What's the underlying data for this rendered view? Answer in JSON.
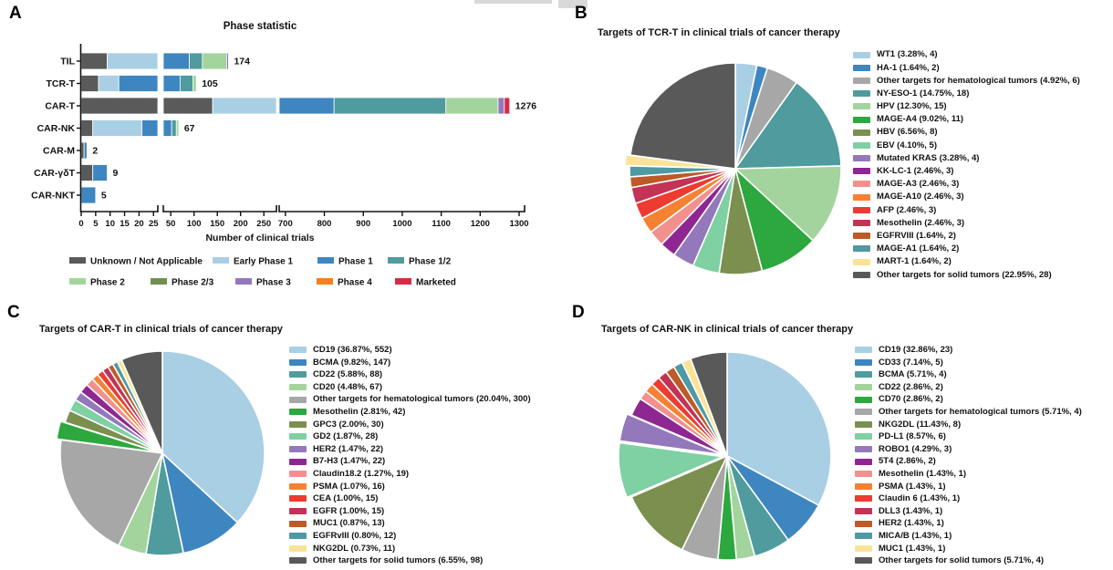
{
  "panels": {
    "a": "A",
    "b": "B",
    "c": "C",
    "d": "D"
  },
  "chart_data": [
    {
      "id": "A",
      "type": "bar",
      "orientation": "horizontal-stacked",
      "title": "Phase statistic",
      "xlabel": "Number of clinical trials",
      "categories": [
        "TIL",
        "TCR-T",
        "CAR-T",
        "CAR-NK",
        "CAR-M",
        "CAR-γδT",
        "CAR-NKT"
      ],
      "totals": [
        174,
        105,
        1276,
        67,
        2,
        9,
        5
      ],
      "series": [
        {
          "name": "Unknown / Not Applicable",
          "color": "#5a5a5a",
          "values": [
            9,
            6,
            140,
            4,
            1,
            4,
            0
          ]
        },
        {
          "name": "Early Phase 1",
          "color": "#a9cfe4",
          "values": [
            21,
            7,
            400,
            17,
            0,
            0,
            0
          ]
        },
        {
          "name": "Phase 1",
          "color": "#3e86c0",
          "values": [
            60,
            57,
            285,
            31,
            1,
            5,
            5
          ]
        },
        {
          "name": "Phase 1/2",
          "color": "#4f9b9e",
          "values": [
            28,
            28,
            287,
            10,
            0,
            0,
            0
          ]
        },
        {
          "name": "Phase 2",
          "color": "#a3d49d",
          "values": [
            52,
            7,
            134,
            5,
            0,
            0,
            0
          ]
        },
        {
          "name": "Phase 2/3",
          "color": "#6f8f4f",
          "values": [
            0,
            0,
            0,
            0,
            0,
            0,
            0
          ]
        },
        {
          "name": "Phase 3",
          "color": "#9478bd",
          "values": [
            4,
            0,
            16,
            0,
            0,
            0,
            0
          ]
        },
        {
          "name": "Phase 4",
          "color": "#f58020",
          "values": [
            0,
            0,
            0,
            0,
            0,
            0,
            0
          ]
        },
        {
          "name": "Marketed",
          "color": "#d62b47",
          "values": [
            0,
            0,
            14,
            0,
            0,
            0,
            0
          ]
        }
      ],
      "axis_segments_values": [
        [
          0,
          26.5
        ],
        [
          34,
          277
        ],
        [
          684,
          1314
        ]
      ],
      "axis_ticks": [
        [
          0,
          5,
          10,
          15,
          20,
          25
        ],
        [
          50,
          100,
          150,
          200,
          250
        ],
        [
          700,
          800,
          900,
          1000,
          1100,
          1200,
          1300
        ]
      ],
      "legend_rows": [
        [
          "Unknown / Not Applicable",
          "Early Phase 1",
          "Phase 1",
          "Phase 1/2"
        ],
        [
          "Phase 2",
          "Phase 2/3",
          "Phase 3",
          "Phase 4",
          "Marketed"
        ]
      ]
    },
    {
      "id": "B",
      "type": "pie",
      "title": "Targets of TCR-T in clinical trials of cancer therapy",
      "slices": [
        {
          "label": "WT1 (3.28%, 4)",
          "value": 3.28,
          "count": 4,
          "color": "#a9cfe4",
          "explode": 0
        },
        {
          "label": "HA-1 (1.64%, 2)",
          "value": 1.64,
          "count": 2,
          "color": "#3e86c0",
          "explode": 0
        },
        {
          "label": "Other targets for hematological tumors (4.92%, 6)",
          "value": 4.92,
          "count": 6,
          "color": "#a7a7a7",
          "explode": 0
        },
        {
          "label": "NY-ESO-1 (14.75%, 18)",
          "value": 14.75,
          "count": 18,
          "color": "#4f9b9e",
          "explode": 0
        },
        {
          "label": "HPV (12.30%, 15)",
          "value": 12.3,
          "count": 15,
          "color": "#a3d49d",
          "explode": 0
        },
        {
          "label": "MAGE-A4 (9.02%, 11)",
          "value": 9.02,
          "count": 11,
          "color": "#2ca83e",
          "explode": 0
        },
        {
          "label": "HBV (6.56%, 8)",
          "value": 6.56,
          "count": 8,
          "color": "#7b8f4e",
          "explode": 0
        },
        {
          "label": "EBV (4.10%, 5)",
          "value": 4.1,
          "count": 5,
          "color": "#7fd0a2",
          "explode": 0
        },
        {
          "label": "Mutated KRAS (3.28%, 4)",
          "value": 3.28,
          "count": 4,
          "color": "#9378bc",
          "explode": 0
        },
        {
          "label": "KK-LC-1 (2.46%, 3)",
          "value": 2.46,
          "count": 3,
          "color": "#8e2791",
          "explode": 0
        },
        {
          "label": "MAGE-A3 (2.46%, 3)",
          "value": 2.46,
          "count": 3,
          "color": "#f2908d",
          "explode": 0
        },
        {
          "label": "MAGE-A10 (2.46%, 3)",
          "value": 2.46,
          "count": 3,
          "color": "#f58233",
          "explode": 0
        },
        {
          "label": "AFP (2.46%, 3)",
          "value": 2.46,
          "count": 3,
          "color": "#ed3b31",
          "explode": 0
        },
        {
          "label": "Mesothelin (2.46%, 3)",
          "value": 2.46,
          "count": 3,
          "color": "#c23355",
          "explode": 0
        },
        {
          "label": "EGFRVIII (1.64%, 2)",
          "value": 1.64,
          "count": 2,
          "color": "#bd5a27",
          "explode": 0
        },
        {
          "label": "MAGE-A1 (1.64%, 2)",
          "value": 1.64,
          "count": 2,
          "color": "#4d99a4",
          "explode": 0
        },
        {
          "label": "MART-1 (1.64%, 2)",
          "value": 1.64,
          "count": 2,
          "color": "#fae398",
          "explode": 1
        },
        {
          "label": "Other targets for solid tumors (22.95%, 28)",
          "value": 22.95,
          "count": 28,
          "color": "#595959",
          "explode": 0
        }
      ]
    },
    {
      "id": "C",
      "type": "pie",
      "title": "Targets of CAR-T in clinical trials of cancer therapy",
      "slices": [
        {
          "label": "CD19 (36.87%, 552)",
          "value": 36.87,
          "count": 552,
          "color": "#a9cfe4",
          "explode": 0
        },
        {
          "label": "BCMA (9.82%, 147)",
          "value": 9.82,
          "count": 147,
          "color": "#3e86c0",
          "explode": 0
        },
        {
          "label": "CD22 (5.88%, 88)",
          "value": 5.88,
          "count": 88,
          "color": "#4f9b9e",
          "explode": 0
        },
        {
          "label": "CD20 (4.48%, 67)",
          "value": 4.48,
          "count": 67,
          "color": "#a3d49d",
          "explode": 0
        },
        {
          "label": "Other targets for hematological tumors (20.04%, 300)",
          "value": 20.04,
          "count": 300,
          "color": "#a7a7a7",
          "explode": 0
        },
        {
          "label": "Mesothelin (2.81%, 42)",
          "value": 2.81,
          "count": 42,
          "color": "#2ca83e",
          "explode": 1
        },
        {
          "label": "GPC3 (2.00%, 30)",
          "value": 2.0,
          "count": 30,
          "color": "#7b8f4e",
          "explode": 0
        },
        {
          "label": "GD2 (1.87%, 28)",
          "value": 1.87,
          "count": 28,
          "color": "#7fd0a2",
          "explode": 0
        },
        {
          "label": "HER2 (1.47%, 22)",
          "value": 1.47,
          "count": 22,
          "color": "#9378bc",
          "explode": 0
        },
        {
          "label": "B7-H3 (1.47%, 22)",
          "value": 1.47,
          "count": 22,
          "color": "#8e2791",
          "explode": 0
        },
        {
          "label": "Claudin18.2 (1.27%, 19)",
          "value": 1.27,
          "count": 19,
          "color": "#f2908d",
          "explode": 0
        },
        {
          "label": "PSMA (1.07%, 16)",
          "value": 1.07,
          "count": 16,
          "color": "#f58233",
          "explode": 0
        },
        {
          "label": "CEA (1.00%, 15)",
          "value": 1.0,
          "count": 15,
          "color": "#ed3b31",
          "explode": 0
        },
        {
          "label": "EGFR (1.00%, 15)",
          "value": 1.0,
          "count": 15,
          "color": "#c23355",
          "explode": 0
        },
        {
          "label": "MUC1 (0.87%, 13)",
          "value": 0.87,
          "count": 13,
          "color": "#bd5a27",
          "explode": 0
        },
        {
          "label": "EGFRvIII (0.80%, 12)",
          "value": 0.8,
          "count": 12,
          "color": "#4d99a4",
          "explode": 0
        },
        {
          "label": "NKG2DL (0.73%, 11)",
          "value": 0.73,
          "count": 11,
          "color": "#fae398",
          "explode": 0
        },
        {
          "label": "Other targets for solid tumors (6.55%, 98)",
          "value": 6.55,
          "count": 98,
          "color": "#595959",
          "explode": 0
        }
      ]
    },
    {
      "id": "D",
      "type": "pie",
      "title": "Targets of CAR-NK in clinical trials of cancer therapy",
      "slices": [
        {
          "label": "CD19 (32.86%, 23)",
          "value": 32.86,
          "count": 23,
          "color": "#a9cfe4",
          "explode": 0
        },
        {
          "label": "CD33 (7.14%, 5)",
          "value": 7.14,
          "count": 5,
          "color": "#3e86c0",
          "explode": 0
        },
        {
          "label": "BCMA (5.71%, 4)",
          "value": 5.71,
          "count": 4,
          "color": "#4f9b9e",
          "explode": 0
        },
        {
          "label": "CD22 (2.86%, 2)",
          "value": 2.86,
          "count": 2,
          "color": "#a3d49d",
          "explode": 0
        },
        {
          "label": "CD70 (2.86%, 2)",
          "value": 2.86,
          "count": 2,
          "color": "#2ca83e",
          "explode": 0
        },
        {
          "label": "Other targets for hematological tumors (5.71%, 4)",
          "value": 5.71,
          "count": 4,
          "color": "#a7a7a7",
          "explode": 0
        },
        {
          "label": "NKG2DL (11.43%, 8)",
          "value": 11.43,
          "count": 8,
          "color": "#7b8f4e",
          "explode": 0
        },
        {
          "label": "PD-L1 (8.57%, 6)",
          "value": 8.57,
          "count": 6,
          "color": "#7fd0a2",
          "explode": 1
        },
        {
          "label": "ROBO1 (4.29%, 3)",
          "value": 4.29,
          "count": 3,
          "color": "#9378bc",
          "explode": 1
        },
        {
          "label": "5T4 (2.86%, 2)",
          "value": 2.86,
          "count": 2,
          "color": "#8e2791",
          "explode": 0
        },
        {
          "label": "Mesothelin (1.43%, 1)",
          "value": 1.43,
          "count": 1,
          "color": "#f2908d",
          "explode": 0
        },
        {
          "label": "PSMA (1.43%, 1)",
          "value": 1.43,
          "count": 1,
          "color": "#f58233",
          "explode": 0
        },
        {
          "label": "Claudin 6 (1.43%, 1)",
          "value": 1.43,
          "count": 1,
          "color": "#ed3b31",
          "explode": 0
        },
        {
          "label": "DLL3 (1.43%, 1)",
          "value": 1.43,
          "count": 1,
          "color": "#c23355",
          "explode": 0
        },
        {
          "label": "HER2 (1.43%, 1)",
          "value": 1.43,
          "count": 1,
          "color": "#bd5a27",
          "explode": 0
        },
        {
          "label": "MICA/B (1.43%, 1)",
          "value": 1.43,
          "count": 1,
          "color": "#4d99a4",
          "explode": 0
        },
        {
          "label": "MUC1 (1.43%, 1)",
          "value": 1.43,
          "count": 1,
          "color": "#fae398",
          "explode": 0
        },
        {
          "label": "Other targets for solid tumors (5.71%, 4)",
          "value": 5.71,
          "count": 4,
          "color": "#595959",
          "explode": 0
        }
      ]
    }
  ]
}
